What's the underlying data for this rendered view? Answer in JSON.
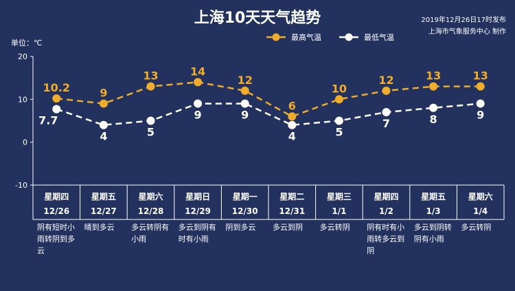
{
  "header": {
    "title": "上海10天天气趋势",
    "publish_line1": "2019年12月26日17时发布",
    "publish_line2": "上海市气象服务中心 制作"
  },
  "colors": {
    "background": "#23315e",
    "high": "#f0ad2b",
    "low": "#ffffff",
    "axis": "#ffffff"
  },
  "chart_data": {
    "type": "line",
    "unit_label": "单位：℃",
    "ylim": [
      -10,
      20
    ],
    "yticks": [
      20,
      10,
      0,
      -10
    ],
    "grid": false,
    "legend_position": "top-right",
    "categories": [
      {
        "weekday": "星期四",
        "date": "12/26"
      },
      {
        "weekday": "星期五",
        "date": "12/27"
      },
      {
        "weekday": "星期六",
        "date": "12/28"
      },
      {
        "weekday": "星期日",
        "date": "12/29"
      },
      {
        "weekday": "星期一",
        "date": "12/30"
      },
      {
        "weekday": "星期二",
        "date": "12/31"
      },
      {
        "weekday": "星期三",
        "date": "1/1"
      },
      {
        "weekday": "星期四",
        "date": "1/2"
      },
      {
        "weekday": "星期五",
        "date": "1/3"
      },
      {
        "weekday": "星期六",
        "date": "1/4"
      }
    ],
    "series": [
      {
        "name": "最高气温",
        "values": [
          10.2,
          9,
          13,
          14,
          12,
          6,
          10,
          12,
          13,
          13
        ]
      },
      {
        "name": "最低气温",
        "values": [
          7.7,
          4,
          5,
          9,
          9,
          4,
          5,
          7,
          8,
          9
        ]
      }
    ],
    "conditions": [
      "阴有短时小雨转阴到多云",
      "晴到多云",
      "多云转阴有小雨",
      "多云到阴有时有小雨",
      "阴到多云",
      "多云到阴",
      "多云转阴",
      "阴有时有小雨转多云到阴",
      "多云到阴转阴有小雨",
      "多云转阴"
    ]
  }
}
